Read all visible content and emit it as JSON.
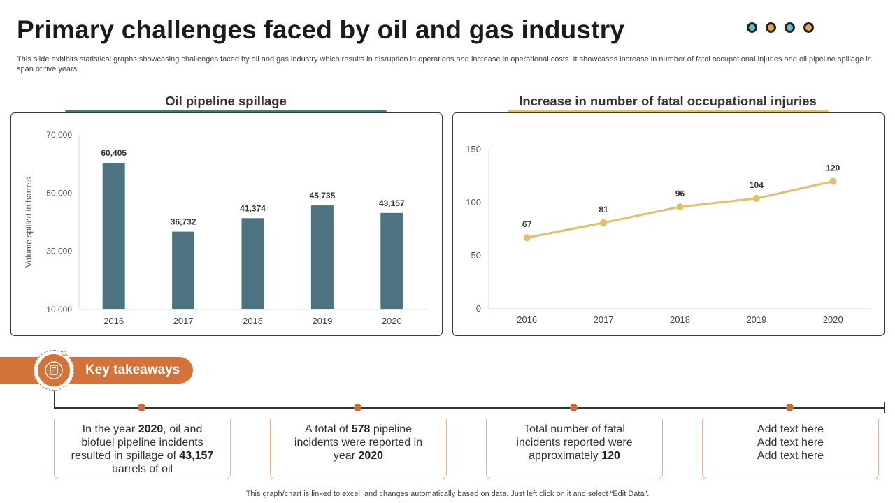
{
  "title": "Primary challenges faced by oil and gas industry",
  "subtitle": "This slide exhibits statistical graphs showcasing challenges faced by oil and gas industry which results in disruption in operations and increase in operational costs. It showcases increase in number of fatal occupational injuries and oil pipeline spillage in span of five years.",
  "decor_dot_colors": [
    "#5bbfc9",
    "#e8a44a",
    "#5bbfc9",
    "#e8a44a"
  ],
  "colors": {
    "bar": "#4d7381",
    "line": "#e6bd68",
    "accent": "#d2733b"
  },
  "chart_data": [
    {
      "type": "bar",
      "title": "Oil pipeline spillage",
      "categories": [
        "2016",
        "2017",
        "2018",
        "2019",
        "2020"
      ],
      "values": [
        60405,
        36732,
        41374,
        45735,
        43157
      ],
      "value_labels": [
        "60,405",
        "36,732",
        "41,374",
        "45,735",
        "43,157"
      ],
      "ylabel": "Volume spilled in barrels",
      "xlabel": "",
      "ylim": [
        10000,
        70000
      ],
      "yticks": [
        10000,
        30000,
        50000,
        70000
      ],
      "ytick_labels": [
        "10,000",
        "30,000",
        "50,000",
        "70,000"
      ],
      "grid": false
    },
    {
      "type": "line",
      "title": "Increase in number of fatal occupational injuries",
      "categories": [
        "2016",
        "2017",
        "2018",
        "2019",
        "2020"
      ],
      "values": [
        67,
        81,
        96,
        104,
        120
      ],
      "value_labels": [
        "67",
        "81",
        "96",
        "104",
        "120"
      ],
      "ylabel": "",
      "xlabel": "",
      "ylim": [
        0,
        150
      ],
      "yticks": [
        0,
        50,
        100,
        150
      ],
      "ytick_labels": [
        "0",
        "50",
        "100",
        "150"
      ],
      "grid": false
    }
  ],
  "key_takeaways": {
    "label": "Key takeaways",
    "items": [
      {
        "parts": [
          [
            "In the year ",
            false
          ],
          [
            "2020",
            true
          ],
          [
            ", oil and biofuel pipeline incidents resulted in spillage of ",
            false
          ],
          [
            "43,157",
            true
          ],
          [
            " barrels of oil",
            false
          ]
        ]
      },
      {
        "parts": [
          [
            "A total of ",
            false
          ],
          [
            "578",
            true
          ],
          [
            " pipeline incidents were reported in year ",
            false
          ],
          [
            "2020",
            true
          ]
        ]
      },
      {
        "parts": [
          [
            "Total number of fatal incidents reported were approximately ",
            false
          ],
          [
            "120",
            true
          ]
        ]
      },
      {
        "parts": [
          [
            "Add text here",
            false
          ],
          [
            "\n",
            false
          ],
          [
            "Add text here",
            false
          ],
          [
            "\n",
            false
          ],
          [
            "Add text here",
            false
          ]
        ]
      }
    ]
  },
  "footer": "This graph/chart is linked to excel,  and changes automatically based on data. Just left click on it and select “Edit Data”."
}
